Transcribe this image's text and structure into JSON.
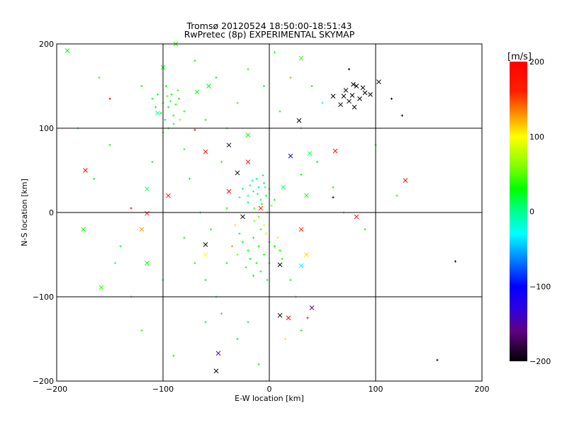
{
  "chart_data": {
    "type": "scatter",
    "title": "Tromsø 20120524 18:50:00-18:51:43",
    "subtitle": "RwPretec (8p) EXPERIMENTAL SKYMAP",
    "xlabel": "E-W location [km]",
    "ylabel": "N-S location [km]",
    "xlim": [
      -200,
      200
    ],
    "ylim": [
      -200,
      200
    ],
    "xticks": [
      "-200",
      "-100",
      "0",
      "100",
      "200"
    ],
    "yticks": [
      "-200",
      "-100",
      "0",
      "100",
      "200"
    ],
    "grid": true,
    "colorbar": {
      "label": "[m/s]",
      "range": [
        -200,
        200
      ],
      "ticks": [
        "200",
        "100",
        "0",
        "-100",
        "-200"
      ],
      "stops": [
        [
          200,
          "#ff0000"
        ],
        [
          160,
          "#ff2000"
        ],
        [
          130,
          "#ff9000"
        ],
        [
          100,
          "#ffff00"
        ],
        [
          60,
          "#80ff00"
        ],
        [
          30,
          "#00ff00"
        ],
        [
          0,
          "#00ff90"
        ],
        [
          -30,
          "#00ffff"
        ],
        [
          -60,
          "#0090ff"
        ],
        [
          -100,
          "#0000ff"
        ],
        [
          -130,
          "#3000e0"
        ],
        [
          -160,
          "#600080"
        ],
        [
          -200,
          "#000000"
        ]
      ]
    },
    "point_format": [
      "x_km",
      "y_km",
      "velocity_m_s",
      "marker"
    ],
    "points": [
      [
        78,
        139,
        -200,
        "x"
      ],
      [
        72,
        145,
        -200,
        "x"
      ],
      [
        82,
        150,
        -200,
        "x"
      ],
      [
        85,
        135,
        -200,
        "x"
      ],
      [
        75,
        132,
        -200,
        "x"
      ],
      [
        90,
        142,
        -200,
        "x"
      ],
      [
        80,
        125,
        -200,
        "x"
      ],
      [
        70,
        138,
        -200,
        "x"
      ],
      [
        88,
        148,
        -195,
        "x"
      ],
      [
        95,
        140,
        -200,
        "x"
      ],
      [
        79,
        152,
        -200,
        "x"
      ],
      [
        67,
        128,
        -200,
        "x"
      ],
      [
        103,
        155,
        -200,
        "x"
      ],
      [
        60,
        138,
        -200,
        "x"
      ],
      [
        28,
        109,
        -200,
        "x"
      ],
      [
        -30,
        47,
        -200,
        "x"
      ],
      [
        -60,
        -38,
        -200,
        "x"
      ],
      [
        10,
        -62,
        -200,
        "x"
      ],
      [
        10,
        -122,
        -200,
        "x"
      ],
      [
        -50,
        -188,
        -200,
        "x"
      ],
      [
        -48,
        -167,
        -150,
        "x"
      ],
      [
        40,
        -113,
        -160,
        "x"
      ],
      [
        20,
        67,
        -110,
        "x"
      ],
      [
        -25,
        -5,
        -200,
        "x"
      ],
      [
        -38,
        80,
        -190,
        "x"
      ],
      [
        -173,
        50,
        200,
        "x"
      ],
      [
        128,
        38,
        190,
        "x"
      ],
      [
        -60,
        72,
        195,
        "x"
      ],
      [
        82,
        -5,
        190,
        "x"
      ],
      [
        18,
        -125,
        200,
        "x"
      ],
      [
        -95,
        20,
        190,
        "x"
      ],
      [
        62,
        73,
        180,
        "x"
      ],
      [
        -38,
        25,
        190,
        "x"
      ],
      [
        -8,
        5,
        170,
        "x"
      ],
      [
        30,
        -20,
        160,
        "x"
      ],
      [
        -20,
        60,
        170,
        "x"
      ],
      [
        -115,
        -1,
        180,
        "x"
      ],
      [
        -150,
        135,
        200,
        "+"
      ],
      [
        -130,
        5,
        190,
        "+"
      ],
      [
        -70,
        98,
        180,
        "+"
      ],
      [
        36,
        -125,
        200,
        "+"
      ],
      [
        -175,
        -20,
        30,
        "x"
      ],
      [
        -158,
        -89,
        40,
        "x"
      ],
      [
        -190,
        192,
        30,
        "x"
      ],
      [
        -115,
        28,
        10,
        "x"
      ],
      [
        -100,
        172,
        30,
        "x"
      ],
      [
        -115,
        -60,
        30,
        "x"
      ],
      [
        -105,
        118,
        0,
        "x"
      ],
      [
        -88,
        200,
        40,
        "x"
      ],
      [
        -57,
        150,
        30,
        "x"
      ],
      [
        -68,
        143,
        30,
        "x"
      ],
      [
        -20,
        92,
        35,
        "x"
      ],
      [
        38,
        70,
        15,
        "x"
      ],
      [
        30,
        183,
        40,
        "x"
      ],
      [
        13,
        30,
        10,
        "x"
      ],
      [
        35,
        20,
        30,
        "x"
      ],
      [
        -60,
        -50,
        100,
        "x"
      ],
      [
        35,
        -50,
        110,
        "x"
      ],
      [
        30,
        -63,
        -30,
        "x"
      ],
      [
        -120,
        -20,
        130,
        "x"
      ],
      [
        120,
        20,
        30,
        "+"
      ],
      [
        -100,
        130,
        30,
        "+"
      ],
      [
        -95,
        125,
        25,
        "+"
      ],
      [
        -90,
        115,
        35,
        "+"
      ],
      [
        -98,
        110,
        20,
        "+"
      ],
      [
        -92,
        140,
        30,
        "+"
      ],
      [
        -88,
        128,
        40,
        "+"
      ],
      [
        -102,
        118,
        25,
        "+"
      ],
      [
        -85,
        135,
        30,
        "+"
      ],
      [
        -95,
        100,
        30,
        "+"
      ],
      [
        -105,
        140,
        20,
        "+"
      ],
      [
        -80,
        120,
        35,
        "+"
      ],
      [
        -97,
        150,
        25,
        "+"
      ],
      [
        -110,
        135,
        30,
        "+"
      ],
      [
        -90,
        105,
        10,
        "+"
      ],
      [
        -86,
        145,
        45,
        "+"
      ],
      [
        -100,
        95,
        30,
        "+"
      ],
      [
        -93,
        132,
        5,
        "+"
      ],
      [
        -84,
        110,
        60,
        "+"
      ],
      [
        -107,
        125,
        30,
        "+"
      ],
      [
        -96,
        138,
        50,
        "+"
      ],
      [
        -10,
        30,
        5,
        "+"
      ],
      [
        -15,
        25,
        0,
        "+"
      ],
      [
        -5,
        35,
        10,
        "+"
      ],
      [
        -20,
        20,
        0,
        "+"
      ],
      [
        -8,
        15,
        15,
        "+"
      ],
      [
        -12,
        40,
        5,
        "+"
      ],
      [
        0,
        28,
        10,
        "+"
      ],
      [
        -18,
        32,
        0,
        "+"
      ],
      [
        -3,
        20,
        20,
        "+"
      ],
      [
        -25,
        28,
        5,
        "+"
      ],
      [
        -7,
        10,
        30,
        "+"
      ],
      [
        -14,
        5,
        40,
        "+"
      ],
      [
        -2,
        0,
        30,
        "+"
      ],
      [
        -10,
        -5,
        50,
        "+"
      ],
      [
        -20,
        12,
        5,
        "+"
      ],
      [
        5,
        15,
        30,
        "+"
      ],
      [
        -16,
        38,
        0,
        "+"
      ],
      [
        -6,
        44,
        10,
        "+"
      ],
      [
        2,
        8,
        60,
        "+"
      ],
      [
        -28,
        18,
        0,
        "+"
      ],
      [
        -11,
        22,
        -5,
        "+"
      ],
      [
        -4,
        30,
        0,
        "+"
      ],
      [
        -10,
        -40,
        30,
        "+"
      ],
      [
        -15,
        -30,
        25,
        "+"
      ],
      [
        -5,
        -50,
        35,
        "+"
      ],
      [
        -20,
        -45,
        30,
        "+"
      ],
      [
        -8,
        -20,
        40,
        "+"
      ],
      [
        0,
        -35,
        30,
        "+"
      ],
      [
        -25,
        -35,
        25,
        "+"
      ],
      [
        -12,
        -60,
        30,
        "+"
      ],
      [
        -30,
        -50,
        60,
        "+"
      ],
      [
        -3,
        -25,
        80,
        "+"
      ],
      [
        -18,
        -55,
        30,
        "+"
      ],
      [
        5,
        -40,
        30,
        "+"
      ],
      [
        -28,
        -25,
        20,
        "+"
      ],
      [
        -8,
        -70,
        30,
        "+"
      ],
      [
        -22,
        -65,
        25,
        "+"
      ],
      [
        8,
        -30,
        110,
        "+"
      ],
      [
        -35,
        -40,
        130,
        "+"
      ],
      [
        -5,
        -15,
        90,
        "+"
      ],
      [
        -15,
        -75,
        30,
        "+"
      ],
      [
        0,
        -60,
        40,
        "+"
      ],
      [
        10,
        -45,
        30,
        "+"
      ],
      [
        -40,
        -60,
        30,
        "+"
      ],
      [
        -14,
        -10,
        60,
        "+"
      ],
      [
        -2,
        -80,
        25,
        "+"
      ],
      [
        -32,
        -15,
        110,
        "+"
      ],
      [
        12,
        -55,
        30,
        "+"
      ],
      [
        -60,
        -80,
        30,
        "+"
      ],
      [
        -50,
        -100,
        30,
        "+"
      ],
      [
        -70,
        -60,
        25,
        "+"
      ],
      [
        -45,
        -120,
        30,
        "+"
      ],
      [
        -80,
        -30,
        30,
        "+"
      ],
      [
        -55,
        -20,
        20,
        "+"
      ],
      [
        -65,
        0,
        30,
        "+"
      ],
      [
        -40,
        100,
        30,
        "+"
      ],
      [
        -30,
        130,
        40,
        "+"
      ],
      [
        -50,
        160,
        30,
        "+"
      ],
      [
        -20,
        170,
        35,
        "+"
      ],
      [
        -70,
        180,
        30,
        "+"
      ],
      [
        -60,
        110,
        30,
        "+"
      ],
      [
        -120,
        150,
        30,
        "+"
      ],
      [
        -140,
        -40,
        30,
        "+"
      ],
      [
        -130,
        -100,
        30,
        "+"
      ],
      [
        -120,
        -140,
        40,
        "+"
      ],
      [
        -150,
        80,
        30,
        "+"
      ],
      [
        -160,
        160,
        40,
        "+"
      ],
      [
        -180,
        100,
        30,
        "+"
      ],
      [
        40,
        150,
        30,
        "+"
      ],
      [
        30,
        100,
        20,
        "+"
      ],
      [
        20,
        160,
        130,
        "+"
      ],
      [
        50,
        130,
        -20,
        "+"
      ],
      [
        45,
        60,
        30,
        "+"
      ],
      [
        60,
        30,
        30,
        "+"
      ],
      [
        70,
        0,
        30,
        "+"
      ],
      [
        90,
        -20,
        30,
        "+"
      ],
      [
        20,
        -80,
        30,
        "+"
      ],
      [
        25,
        -100,
        30,
        "+"
      ],
      [
        30,
        -140,
        30,
        "+"
      ],
      [
        15,
        -150,
        110,
        "+"
      ],
      [
        -30,
        -150,
        30,
        "+"
      ],
      [
        -10,
        -180,
        30,
        "+"
      ],
      [
        -90,
        -170,
        30,
        "+"
      ],
      [
        -100,
        -80,
        30,
        "+"
      ],
      [
        100,
        80,
        30,
        "+"
      ],
      [
        115,
        135,
        -200,
        "+"
      ],
      [
        125,
        115,
        -200,
        "+"
      ],
      [
        175,
        -58,
        -200,
        "+"
      ],
      [
        158,
        -175,
        -200,
        "+"
      ],
      [
        75,
        170,
        -200,
        "+"
      ],
      [
        60,
        18,
        -200,
        "+"
      ],
      [
        -165,
        40,
        30,
        "+"
      ],
      [
        -145,
        -60,
        0,
        "+"
      ],
      [
        -110,
        60,
        30,
        "+"
      ],
      [
        -75,
        40,
        30,
        "+"
      ],
      [
        -40,
        5,
        30,
        "+"
      ],
      [
        10,
        120,
        35,
        "+"
      ],
      [
        -5,
        150,
        30,
        "+"
      ],
      [
        5,
        190,
        30,
        "+"
      ],
      [
        -45,
        60,
        40,
        "+"
      ],
      [
        -80,
        75,
        20,
        "+"
      ],
      [
        30,
        45,
        30,
        "+"
      ],
      [
        -60,
        -130,
        30,
        "+"
      ],
      [
        -20,
        -130,
        30,
        "+"
      ]
    ]
  }
}
